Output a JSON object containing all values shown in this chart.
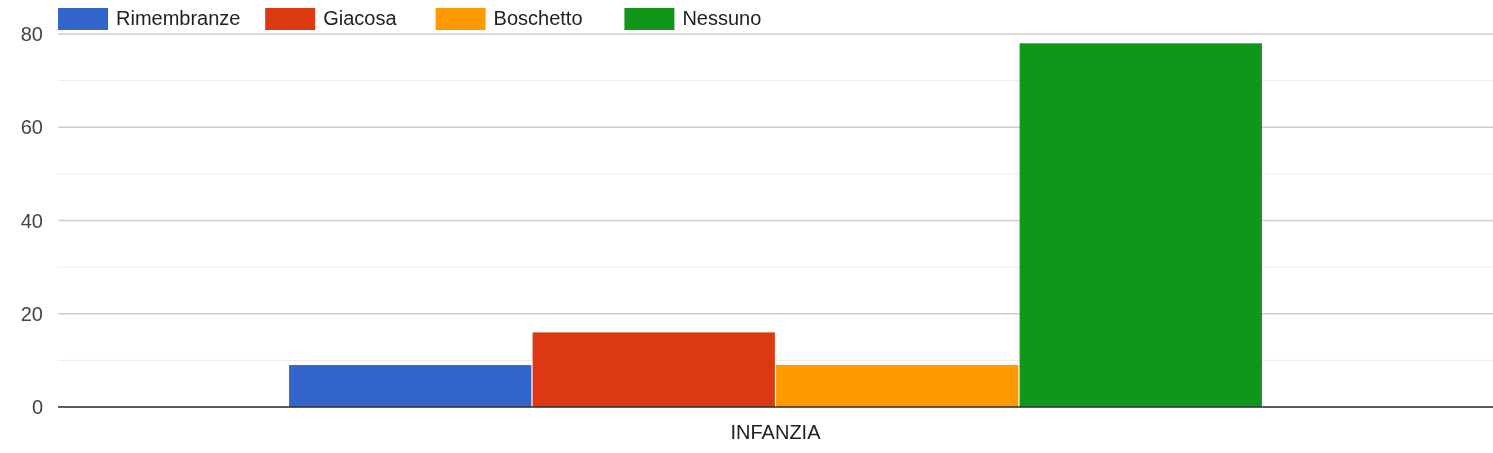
{
  "chart_data": {
    "type": "bar",
    "categories": [
      "INFANZIA"
    ],
    "series": [
      {
        "name": "Rimembranze",
        "color": "#3366cc",
        "values": [
          9
        ]
      },
      {
        "name": "Giacosa",
        "color": "#dc3912",
        "values": [
          16
        ]
      },
      {
        "name": "Boschetto",
        "color": "#ff9900",
        "values": [
          9
        ]
      },
      {
        "name": "Nessuno",
        "color": "#109618",
        "values": [
          78
        ]
      }
    ],
    "ylim": [
      0,
      80
    ],
    "yticks": [
      0,
      {
        "value": 10,
        "label": null
      },
      20,
      {
        "value": 30,
        "label": null
      },
      40,
      {
        "value": 50,
        "label": null
      },
      60,
      {
        "value": 70,
        "label": null
      },
      80
    ],
    "grid": true,
    "legend": "top left"
  }
}
